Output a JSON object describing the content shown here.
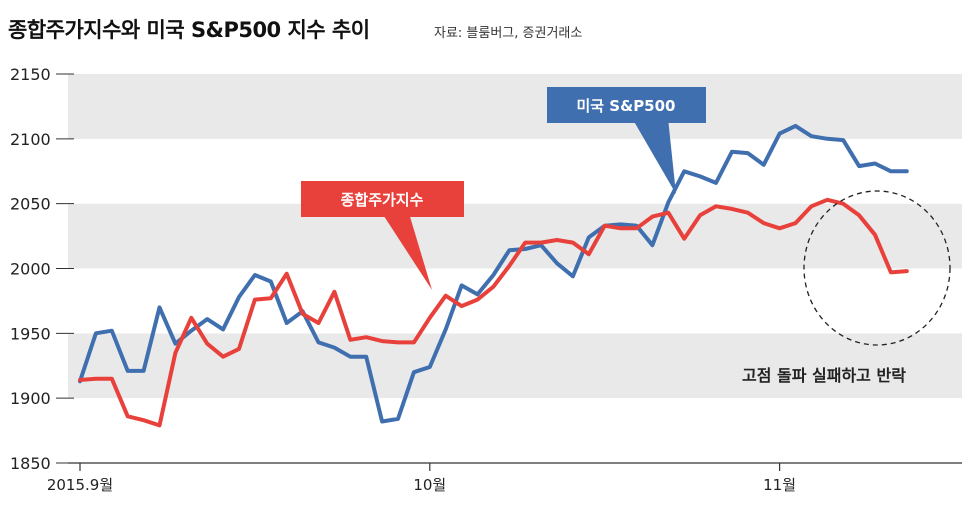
{
  "header": {
    "title": "종합주가지수와 미국 S&P500 지수 추이",
    "source": "자료: 블룸버그, 증권거래소"
  },
  "chart_data": {
    "type": "line",
    "title": "종합주가지수와 미국 S&P500 지수 추이",
    "ylim": [
      1850,
      2150
    ],
    "yticks": [
      1850,
      1900,
      1950,
      2000,
      2050,
      2100,
      2150
    ],
    "x_tick_labels": [
      "2015.9월",
      "10월",
      "11월"
    ],
    "x_tick_index": [
      0,
      22,
      44
    ],
    "x_count": 53,
    "grid": "alternating horizontal bands",
    "series": [
      {
        "name": "종합주가지수",
        "color": "#e8413b",
        "values": [
          1914,
          1915,
          1915,
          1886,
          1883,
          1879,
          1935,
          1962,
          1942,
          1932,
          1938,
          1976,
          1977,
          1996,
          1965,
          1958,
          1982,
          1945,
          1947,
          1944,
          1943,
          1943,
          1962,
          1979,
          1971,
          1976,
          1986,
          2002,
          2020,
          2020,
          2022,
          2020,
          2011,
          2033,
          2031,
          2031,
          2040,
          2043,
          2023,
          2041,
          2048,
          2046,
          2043,
          2035,
          2031,
          2035,
          2048,
          2053,
          2050,
          2041,
          2026,
          1997,
          1998
        ]
      },
      {
        "name": "미국 S&P500",
        "color": "#3f6faf",
        "values": [
          1913,
          1950,
          1952,
          1921,
          1921,
          1970,
          1942,
          1952,
          1961,
          1953,
          1978,
          1995,
          1990,
          1958,
          1967,
          1943,
          1939,
          1932,
          1932,
          1882,
          1884,
          1920,
          1924,
          1953,
          1987,
          1980,
          1995,
          2014,
          2015,
          2018,
          2004,
          1994,
          2024,
          2033,
          2034,
          2033,
          2018,
          2051,
          2075,
          2071,
          2066,
          2090,
          2089,
          2080,
          2104,
          2110,
          2102,
          2100,
          2099,
          2079,
          2081,
          2075,
          2075
        ]
      }
    ],
    "callouts": [
      {
        "series": "미국 S&P500",
        "text": "미국 S&P500"
      },
      {
        "series": "종합주가지수",
        "text": "종합주가지수"
      }
    ],
    "annotations": [
      {
        "text": "고점 돌파 실패하고 반락"
      }
    ]
  }
}
